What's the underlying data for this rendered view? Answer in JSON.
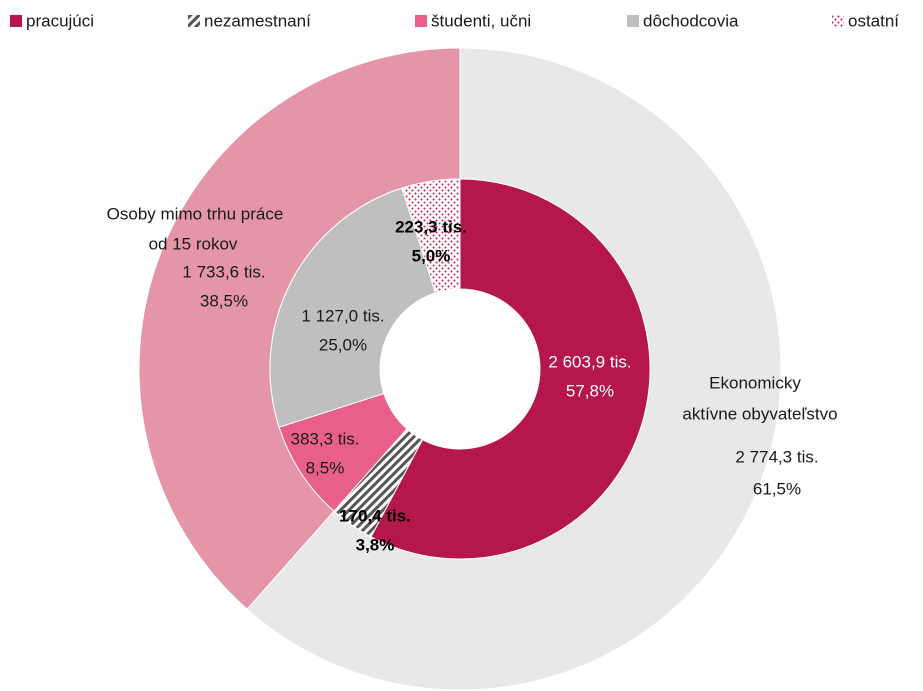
{
  "chart_data": {
    "type": "nested-donut",
    "rings": [
      {
        "categories": [
          "pracujúci",
          "nezamestnaní",
          "študenti, učni",
          "dôchodcovia",
          "ostatní"
        ],
        "colors": [
          "#b5174b",
          "#7f7f7f",
          "#e8608a",
          "#bfbfbf",
          "#c2185b"
        ],
        "patterns": [
          null,
          "hatch",
          null,
          null,
          "dots"
        ],
        "values": [
          2603.9,
          170.4,
          383.3,
          1127.0,
          223.3
        ],
        "value_labels": [
          "2 603,9 tis.",
          "170,4 tis.",
          "383,3 tis.",
          "1 127,0 tis.",
          "223,3 tis."
        ],
        "shares": [
          57.8,
          3.8,
          8.5,
          25.0,
          5.0
        ],
        "share_labels": [
          "57,8%",
          "3,8%",
          "8,5%",
          "25,0%",
          "5,0%"
        ]
      },
      {
        "label_lines": [
          [
            "Ekonomicky",
            "aktívne obyvateľstvo"
          ],
          [
            "Osoby mimo trhu práce",
            "od 15 rokov"
          ]
        ],
        "colors": [
          "#e8e8e8",
          "#e595a8"
        ],
        "values": [
          2774.3,
          1733.6
        ],
        "value_labels": [
          "2 774,3 tis.",
          "1 733,6 tis."
        ],
        "shares": [
          61.5,
          38.5
        ],
        "share_labels": [
          "61,5%",
          "38,5%"
        ]
      }
    ]
  }
}
